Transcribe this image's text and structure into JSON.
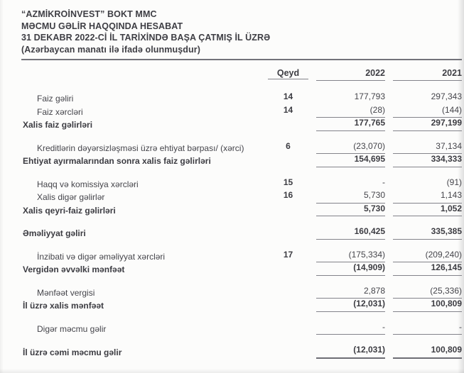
{
  "header": {
    "company": "“AZMİKROİNVEST” BOKT MMC",
    "title": "MƏCMU GƏLİR HAQQINDA HESABAT",
    "period": "31 DEKABR 2022-Cİ İL TARİXİNDƏ BAŞA ÇATMIŞ İL ÜZRƏ",
    "currency_note": "(Azərbaycan manatı ilə ifadə olunmuşdur)"
  },
  "table": {
    "columns": {
      "note": "Qeyd",
      "y2022": "2022",
      "y2021": "2021"
    },
    "rows": [
      {
        "label": "Faiz gəliri",
        "note": "14",
        "v2022": "177,793",
        "v2021": "297,343",
        "bold": false,
        "line": false,
        "gap": false,
        "thick": false
      },
      {
        "label": "Faiz xərcləri",
        "note": "14",
        "v2022": "(28)",
        "v2021": "(144)",
        "bold": false,
        "line": true,
        "gap": false,
        "thick": false
      },
      {
        "label": "Xalis faiz gəlirləri",
        "note": "",
        "v2022": "177,765",
        "v2021": "297,199",
        "bold": true,
        "line": true,
        "gap": false,
        "thick": false
      },
      {
        "label": "Kreditlərin dəyərsizləşməsi üzrə ehtiyat bərpası/ (xərci)",
        "note": "6",
        "v2022": "(23,070)",
        "v2021": "37,134",
        "bold": false,
        "line": true,
        "gap": true,
        "thick": false
      },
      {
        "label": "Ehtiyat ayırmalarından sonra xalis faiz gəlirləri",
        "note": "",
        "v2022": "154,695",
        "v2021": "334,333",
        "bold": true,
        "line": true,
        "gap": false,
        "thick": false
      },
      {
        "label": "Haqq və komissiya xərcləri",
        "note": "15",
        "v2022": "-",
        "v2021": "(91)",
        "bold": false,
        "line": false,
        "gap": true,
        "thick": false
      },
      {
        "label": "Xalis digər gəlirlər",
        "note": "16",
        "v2022": "5,730",
        "v2021": "1,143",
        "bold": false,
        "line": true,
        "gap": false,
        "thick": false
      },
      {
        "label": "Xalis qeyri-faiz gəlirləri",
        "note": "",
        "v2022": "5,730",
        "v2021": "1,052",
        "bold": true,
        "line": true,
        "gap": false,
        "thick": false
      },
      {
        "label": "Əməliyyat gəliri",
        "note": "",
        "v2022": "160,425",
        "v2021": "335,385",
        "bold": true,
        "line": true,
        "gap": true,
        "thick": false
      },
      {
        "label": "İnzibati və digər əməliyyat xərcləri",
        "note": "17",
        "v2022": "(175,334)",
        "v2021": "(209,240)",
        "bold": false,
        "line": true,
        "gap": true,
        "thick": false
      },
      {
        "label": "Vergidən əvvəlki mənfəət",
        "note": "",
        "v2022": "(14,909)",
        "v2021": "126,145",
        "bold": true,
        "line": true,
        "gap": false,
        "thick": false
      },
      {
        "label": "Mənfəət vergisi",
        "note": "",
        "v2022": "2,878",
        "v2021": "(25,336)",
        "bold": false,
        "line": true,
        "gap": true,
        "thick": false
      },
      {
        "label": "İl üzrə xalis mənfəət",
        "note": "",
        "v2022": "(12,031)",
        "v2021": "100,809",
        "bold": true,
        "line": true,
        "gap": false,
        "thick": false
      },
      {
        "label": "Digər məcmu gəlir",
        "note": "",
        "v2022": "-",
        "v2021": "-",
        "bold": false,
        "line": true,
        "gap": true,
        "thick": false
      },
      {
        "label": "İl üzrə cəmi məcmu gəlir",
        "note": "",
        "v2022": "(12,031)",
        "v2021": "100,809",
        "bold": true,
        "line": true,
        "gap": true,
        "thick": true
      }
    ]
  },
  "colors": {
    "text": "#45454b",
    "line": "#83838a",
    "rule": "#73737a"
  }
}
